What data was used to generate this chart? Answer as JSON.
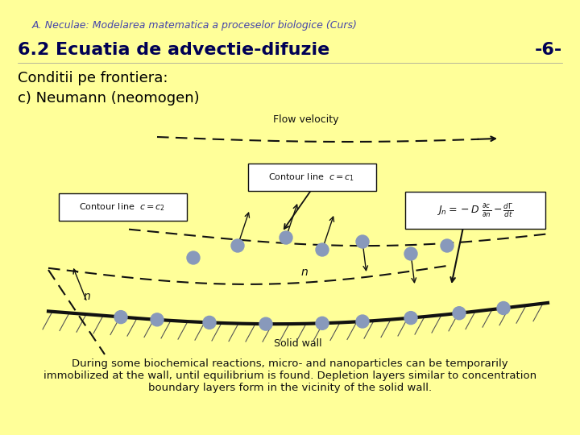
{
  "bg_color": "#FFFF99",
  "header_text": "A. Neculae: Modelarea matematica a proceselor biologice (Curs)",
  "header_color": "#4444AA",
  "header_fontsize": 9,
  "title_text": "6.2 Ecuatia de advectie-difuzie",
  "title_color": "#000055",
  "title_fontsize": 16,
  "page_num": "-6-",
  "section_text": "Conditii pe frontiera:",
  "subsection_text": "c) Neumann (neomogen)",
  "section_fontsize": 13,
  "body_text": "During some biochemical reactions, micro- and nanoparticles can be temporarily\nimmobilized at the wall, until equilibrium is found. Depletion layers similar to concentration\nboundary layers form in the vicinity of the solid wall.",
  "body_fontsize": 9.5,
  "label_flow": "Flow velocity",
  "label_solid": "Solid wall",
  "label_n": "n"
}
